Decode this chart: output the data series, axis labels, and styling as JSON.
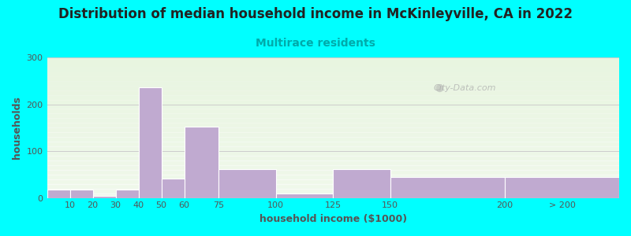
{
  "title": "Distribution of median household income in McKinleyville, CA in 2022",
  "subtitle": "Multirace residents",
  "xlabel": "household income ($1000)",
  "ylabel": "households",
  "background_color": "#00FFFF",
  "plot_bg_color": "#e8f5e0",
  "bar_color": "#c0aad0",
  "bar_edge_color": "#c0aad0",
  "bin_edges": [
    0,
    10,
    20,
    30,
    40,
    50,
    60,
    75,
    100,
    125,
    150,
    200,
    250
  ],
  "bin_labels": [
    "10",
    "20",
    "30",
    "40",
    "50",
    "60",
    "75",
    "100",
    "125",
    "150",
    "200",
    "> 200"
  ],
  "values": [
    17,
    17,
    5,
    17,
    237,
    42,
    152,
    62,
    10,
    62,
    45,
    45
  ],
  "ylim": [
    0,
    300
  ],
  "xlim": [
    0,
    250
  ],
  "yticks": [
    0,
    100,
    200,
    300
  ],
  "xtick_positions": [
    10,
    20,
    30,
    40,
    50,
    60,
    75,
    100,
    125,
    150,
    200,
    225
  ],
  "xtick_labels": [
    "10",
    "20",
    "30",
    "40",
    "50",
    "60",
    "75",
    "100",
    "125",
    "150",
    "200",
    "> 200"
  ],
  "watermark": "City-Data.com",
  "title_fontsize": 12,
  "subtitle_fontsize": 10,
  "axis_label_fontsize": 9,
  "tick_fontsize": 8
}
